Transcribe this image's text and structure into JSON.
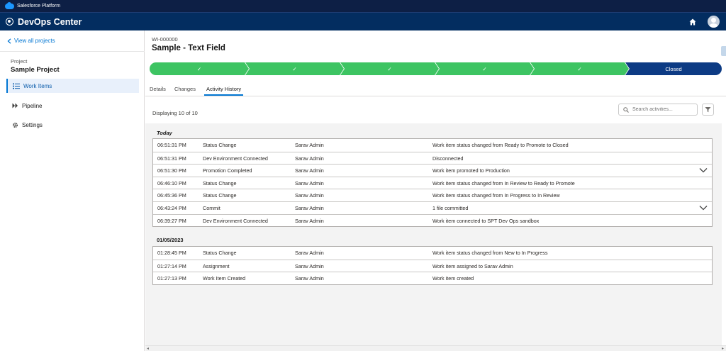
{
  "topbar": {
    "platform": "Salesforce Platform",
    "icon": "salesforce-cloud-icon"
  },
  "appbar": {
    "app_name": "DevOps Center",
    "icons": [
      "app-launcher-icon",
      "home-icon",
      "avatar"
    ]
  },
  "sidebar": {
    "back_link": "View all projects",
    "project_label": "Project",
    "project_name": "Sample Project",
    "items": [
      {
        "label": "Work Items",
        "icon": "work-items-icon",
        "active": true
      },
      {
        "label": "Pipeline",
        "icon": "pipeline-icon",
        "active": false
      },
      {
        "label": "Settings",
        "icon": "gear-icon",
        "active": false
      }
    ]
  },
  "work_item": {
    "id": "WI-000000",
    "title": "Sample - Text Field",
    "path": {
      "stages": [
        "✓",
        "✓",
        "✓",
        "✓",
        "✓",
        "Closed"
      ],
      "current_index": 5
    },
    "tabs": [
      {
        "label": "Details",
        "active": false
      },
      {
        "label": "Changes",
        "active": false
      },
      {
        "label": "Activity History",
        "active": true
      }
    ]
  },
  "activity": {
    "count_text": "Displaying 10 of 10",
    "search_placeholder": "Search activities...",
    "groups": [
      {
        "label": "Today",
        "rows": [
          {
            "time": "06:51:31 PM",
            "event": "Status Change",
            "user": "Sarav Admin",
            "description": "Work item status changed from Ready to Promote to Closed",
            "expandable": false
          },
          {
            "time": "06:51:31 PM",
            "event": "Dev Environment Connected",
            "user": "Sarav Admin",
            "description": "Disconnected",
            "expandable": false
          },
          {
            "time": "06:51:30 PM",
            "event": "Promotion Completed",
            "user": "Sarav Admin",
            "description": "Work item promoted to Production",
            "expandable": true
          },
          {
            "time": "06:46:10 PM",
            "event": "Status Change",
            "user": "Sarav Admin",
            "description": "Work item status changed from In Review to Ready to Promote",
            "expandable": false
          },
          {
            "time": "06:45:36 PM",
            "event": "Status Change",
            "user": "Sarav Admin",
            "description": "Work item status changed from In Progress to In Review",
            "expandable": false
          },
          {
            "time": "06:43:24 PM",
            "event": "Commit",
            "user": "Sarav Admin",
            "description": "1 file committed",
            "expandable": true
          },
          {
            "time": "06:39:27 PM",
            "event": "Dev Environment Connected",
            "user": "Sarav Admin",
            "description": "Work item connected to SPT Dev Ops sandbox",
            "expandable": false
          }
        ]
      },
      {
        "label": "01/05/2023",
        "rows": [
          {
            "time": "01:28:45 PM",
            "event": "Status Change",
            "user": "Sarav Admin",
            "description": "Work item status changed from New to In Progress",
            "expandable": false
          },
          {
            "time": "01:27:14 PM",
            "event": "Assignment",
            "user": "Sarav Admin",
            "description": "Work item assigned to Sarav Admin",
            "expandable": false
          },
          {
            "time": "01:27:13 PM",
            "event": "Work Item Created",
            "user": "Sarav Admin",
            "description": "Work item created",
            "expandable": false
          }
        ]
      }
    ]
  },
  "colors": {
    "nav_dark": "#032d60",
    "top_dark": "#0d1f45",
    "stage_done": "#3dc462",
    "stage_current": "#0d3b84",
    "link_blue": "#0176d3"
  }
}
